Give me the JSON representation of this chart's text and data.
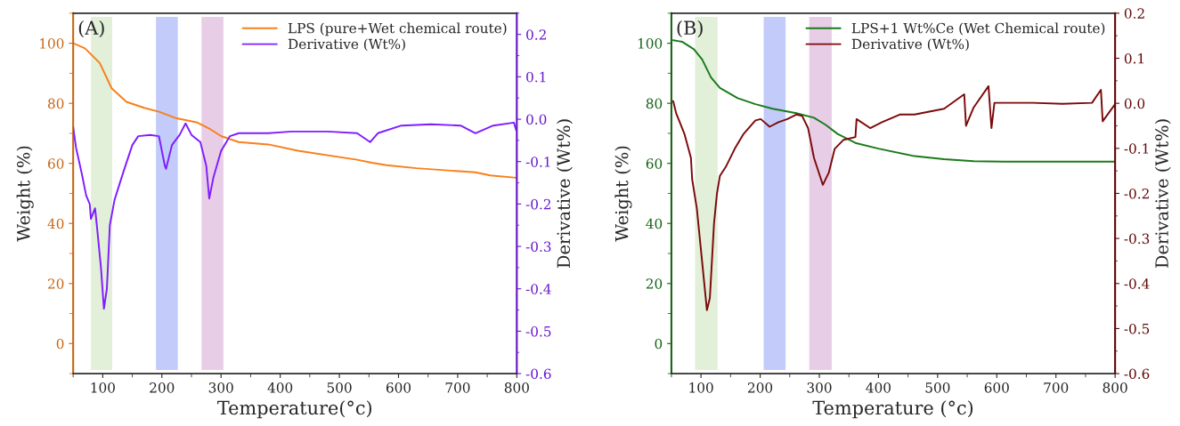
{
  "chart_data": [
    {
      "type": "line",
      "annotations": [
        "(A)"
      ],
      "xlabel": "Temperature(°c)",
      "ylabel": "Weight (%)",
      "y2label": "Derivative (Wt%)",
      "xlim": [
        50,
        800
      ],
      "xticks": [
        100,
        200,
        300,
        400,
        500,
        600,
        700,
        800
      ],
      "ylim": [
        -10,
        110
      ],
      "yticks": [
        0,
        20,
        40,
        60,
        80,
        100
      ],
      "y2lim": [
        -0.6,
        0.25
      ],
      "y2ticks": [
        -0.6,
        -0.5,
        -0.4,
        -0.3,
        -0.2,
        -0.1,
        {
          "value": 0,
          "label": "0.0"
        },
        0.1,
        0.2
      ],
      "legend": "top right",
      "grid": false,
      "bands": [
        {
          "axis": "x",
          "from": 80,
          "to": 116,
          "color": "#e2efd9"
        },
        {
          "axis": "x",
          "from": 190,
          "to": 227,
          "color": "#c2cbf9"
        },
        {
          "axis": "x",
          "from": 267,
          "to": 304,
          "color": "#e8cde6"
        }
      ],
      "series": [
        {
          "name": "LPS (pure+Wet chemical route)",
          "color": "#f97f1a",
          "axis": "y",
          "x": [
            50,
            70,
            95,
            115,
            140,
            170,
            195,
            225,
            260,
            280,
            300,
            330,
            380,
            430,
            530,
            555,
            580,
            630,
            730,
            755,
            799
          ],
          "values": [
            100,
            98.3,
            93.4,
            85,
            80.5,
            78.5,
            77.2,
            75,
            73.6,
            71.6,
            69.1,
            67.1,
            66.3,
            64.2,
            61.2,
            60.2,
            59.4,
            58.4,
            57,
            56,
            55.2
          ]
        },
        {
          "name": "Derivative (Wt%)",
          "color": "#7f1dff",
          "axis": "y2",
          "x": [
            50,
            55,
            65,
            72,
            78,
            80,
            87,
            90,
            97,
            102,
            107,
            112,
            120,
            135,
            150,
            160,
            180,
            195,
            205,
            207,
            217,
            230,
            240,
            250,
            265,
            275,
            280,
            287,
            300,
            315,
            330,
            380,
            420,
            430,
            480,
            530,
            552,
            565,
            605,
            655,
            705,
            730,
            760,
            795,
            799
          ],
          "values": [
            -0.019,
            -0.068,
            -0.131,
            -0.18,
            -0.2,
            -0.235,
            -0.21,
            -0.25,
            -0.35,
            -0.447,
            -0.4,
            -0.25,
            -0.19,
            -0.124,
            -0.061,
            -0.04,
            -0.037,
            -0.04,
            -0.11,
            -0.117,
            -0.061,
            -0.037,
            -0.01,
            -0.037,
            -0.054,
            -0.11,
            -0.187,
            -0.138,
            -0.075,
            -0.04,
            -0.033,
            -0.033,
            -0.029,
            -0.029,
            -0.029,
            -0.033,
            -0.054,
            -0.033,
            -0.015,
            -0.012,
            -0.015,
            -0.033,
            -0.015,
            -0.008,
            -0.026
          ]
        }
      ]
    },
    {
      "type": "line",
      "annotations": [
        "(B)"
      ],
      "xlabel": "Temperature (°c)",
      "ylabel": "Weight (%)",
      "y2label": "Derivative (Wt%)",
      "xlim": [
        50,
        800
      ],
      "xticks": [
        100,
        200,
        300,
        400,
        500,
        600,
        700,
        800
      ],
      "ylim": [
        -10,
        110
      ],
      "yticks": [
        0,
        20,
        40,
        60,
        80,
        100
      ],
      "y2lim": [
        -0.6,
        0.2
      ],
      "y2ticks": [
        -0.6,
        -0.5,
        -0.4,
        -0.3,
        -0.2,
        -0.1,
        {
          "value": 0,
          "label": "0.0"
        },
        0.1,
        0.2
      ],
      "legend": "top right",
      "grid": false,
      "bands": [
        {
          "axis": "x",
          "from": 90,
          "to": 128,
          "color": "#e2efd9"
        },
        {
          "axis": "x",
          "from": 206,
          "to": 243,
          "color": "#c2cbf9"
        },
        {
          "axis": "x",
          "from": 283,
          "to": 321,
          "color": "#e8cde6"
        }
      ],
      "series": [
        {
          "name": "LPS+1 Wt%Ce (Wet Chemical route)",
          "color": "#1a7a1a",
          "axis": "y",
          "x": [
            53,
            68,
            88,
            102,
            117,
            132,
            162,
            192,
            221,
            261,
            291,
            311,
            331,
            361,
            400,
            461,
            511,
            561,
            611,
            800
          ],
          "values": [
            101,
            100.5,
            98,
            94.6,
            88.6,
            85.1,
            81.7,
            79.7,
            78.2,
            76.7,
            75.2,
            72.8,
            69.8,
            66.8,
            64.9,
            62.4,
            61.4,
            60.7,
            60.6,
            60.6
          ]
        },
        {
          "name": "Derivative (Wt%)",
          "color": "#7a0a0a",
          "axis": "y2",
          "x": [
            53,
            58,
            72,
            83,
            85,
            93,
            102,
            110,
            115,
            122,
            127,
            132,
            142,
            157,
            172,
            192,
            201,
            216,
            231,
            246,
            261,
            271,
            281,
            291,
            301,
            306,
            316,
            326,
            341,
            361,
            363,
            386,
            406,
            436,
            461,
            511,
            545,
            548,
            561,
            586,
            591,
            596,
            661,
            711,
            761,
            776,
            779,
            800
          ],
          "values": [
            0.005,
            -0.022,
            -0.068,
            -0.121,
            -0.168,
            -0.234,
            -0.353,
            -0.459,
            -0.432,
            -0.267,
            -0.2,
            -0.161,
            -0.141,
            -0.101,
            -0.068,
            -0.038,
            -0.035,
            -0.052,
            -0.042,
            -0.035,
            -0.025,
            -0.028,
            -0.055,
            -0.121,
            -0.161,
            -0.181,
            -0.154,
            -0.101,
            -0.081,
            -0.075,
            -0.035,
            -0.055,
            -0.042,
            -0.025,
            -0.025,
            -0.012,
            0.02,
            -0.05,
            -0.009,
            0.038,
            -0.055,
            0.001,
            0.001,
            -0.001,
            0.001,
            0.03,
            -0.04,
            -0.002
          ]
        }
      ]
    }
  ]
}
